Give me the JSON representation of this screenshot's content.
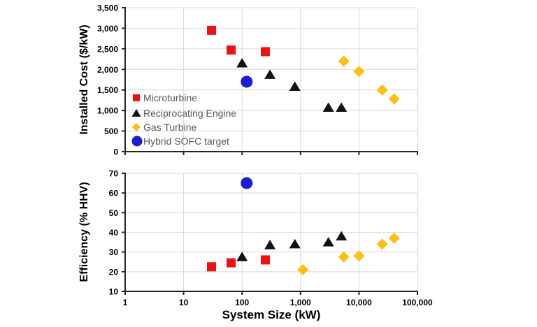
{
  "figure": {
    "background": "#ffffff",
    "gridline_color": "#d9d9d9",
    "axis_color": "#262626",
    "legend_text_color": "#595959",
    "x_axis": {
      "scale": "log",
      "min": 1,
      "max": 100000,
      "tick_values": [
        1,
        10,
        100,
        1000,
        10000,
        100000
      ],
      "tick_labels": [
        "1",
        "10",
        "100",
        "1,000",
        "10,000",
        "100,000"
      ]
    }
  },
  "chart_data": [
    {
      "type": "scatter",
      "title": "",
      "xlabel": "",
      "ylabel": "Installed Cost ($/kW)",
      "x_scale": "log",
      "xlim": [
        1,
        100000
      ],
      "ylim": [
        0,
        3500
      ],
      "grid": true,
      "y_ticks": [
        0,
        500,
        1000,
        1500,
        2000,
        2500,
        3000,
        3500
      ],
      "y_tick_labels": [
        "0",
        "500",
        "1,000",
        "1,500",
        "2,000",
        "2,500",
        "3,000",
        "3,500"
      ],
      "legend_position": "lower-left",
      "series": [
        {
          "name": "Microturbine",
          "marker": "square",
          "color": "#ee1111",
          "points": [
            [
              30,
              2950
            ],
            [
              65,
              2470
            ],
            [
              250,
              2430
            ]
          ]
        },
        {
          "name": "Reciprocating Engine",
          "marker": "triangle",
          "color": "#111111",
          "points": [
            [
              100,
              2150
            ],
            [
              300,
              1870
            ],
            [
              800,
              1580
            ],
            [
              3000,
              1070
            ],
            [
              5000,
              1070
            ]
          ]
        },
        {
          "name": "Gas Turbine",
          "marker": "diamond",
          "color": "#fdc010",
          "points": [
            [
              5500,
              2200
            ],
            [
              10000,
              1950
            ],
            [
              25000,
              1500
            ],
            [
              40000,
              1280
            ]
          ]
        },
        {
          "name": "Hybrid SOFC target",
          "marker": "circle",
          "color": "#1c1cd6",
          "points": [
            [
              120,
              1700
            ]
          ]
        }
      ]
    },
    {
      "type": "scatter",
      "title": "",
      "xlabel": "System Size (kW)",
      "ylabel": "Efficiency (% HHV)",
      "x_scale": "log",
      "xlim": [
        1,
        100000
      ],
      "ylim": [
        10,
        70
      ],
      "grid": true,
      "y_ticks": [
        10,
        20,
        30,
        40,
        50,
        60,
        70
      ],
      "y_tick_labels": [
        "10",
        "20",
        "30",
        "40",
        "50",
        "60",
        "70"
      ],
      "legend_position": "none",
      "series": [
        {
          "name": "Microturbine",
          "marker": "square",
          "color": "#ee1111",
          "points": [
            [
              30,
              22.5
            ],
            [
              65,
              24.5
            ],
            [
              250,
              26
            ]
          ]
        },
        {
          "name": "Reciprocating Engine",
          "marker": "triangle",
          "color": "#111111",
          "points": [
            [
              100,
              27.5
            ],
            [
              300,
              33.5
            ],
            [
              800,
              34
            ],
            [
              3000,
              35
            ],
            [
              5000,
              38
            ]
          ]
        },
        {
          "name": "Gas Turbine",
          "marker": "diamond",
          "color": "#fdc010",
          "points": [
            [
              1100,
              21
            ],
            [
              5500,
              27.5
            ],
            [
              10000,
              28
            ],
            [
              25000,
              34
            ],
            [
              40000,
              37
            ]
          ]
        },
        {
          "name": "Hybrid SOFC target",
          "marker": "circle",
          "color": "#1c1cd6",
          "points": [
            [
              120,
              65
            ]
          ]
        }
      ]
    }
  ]
}
